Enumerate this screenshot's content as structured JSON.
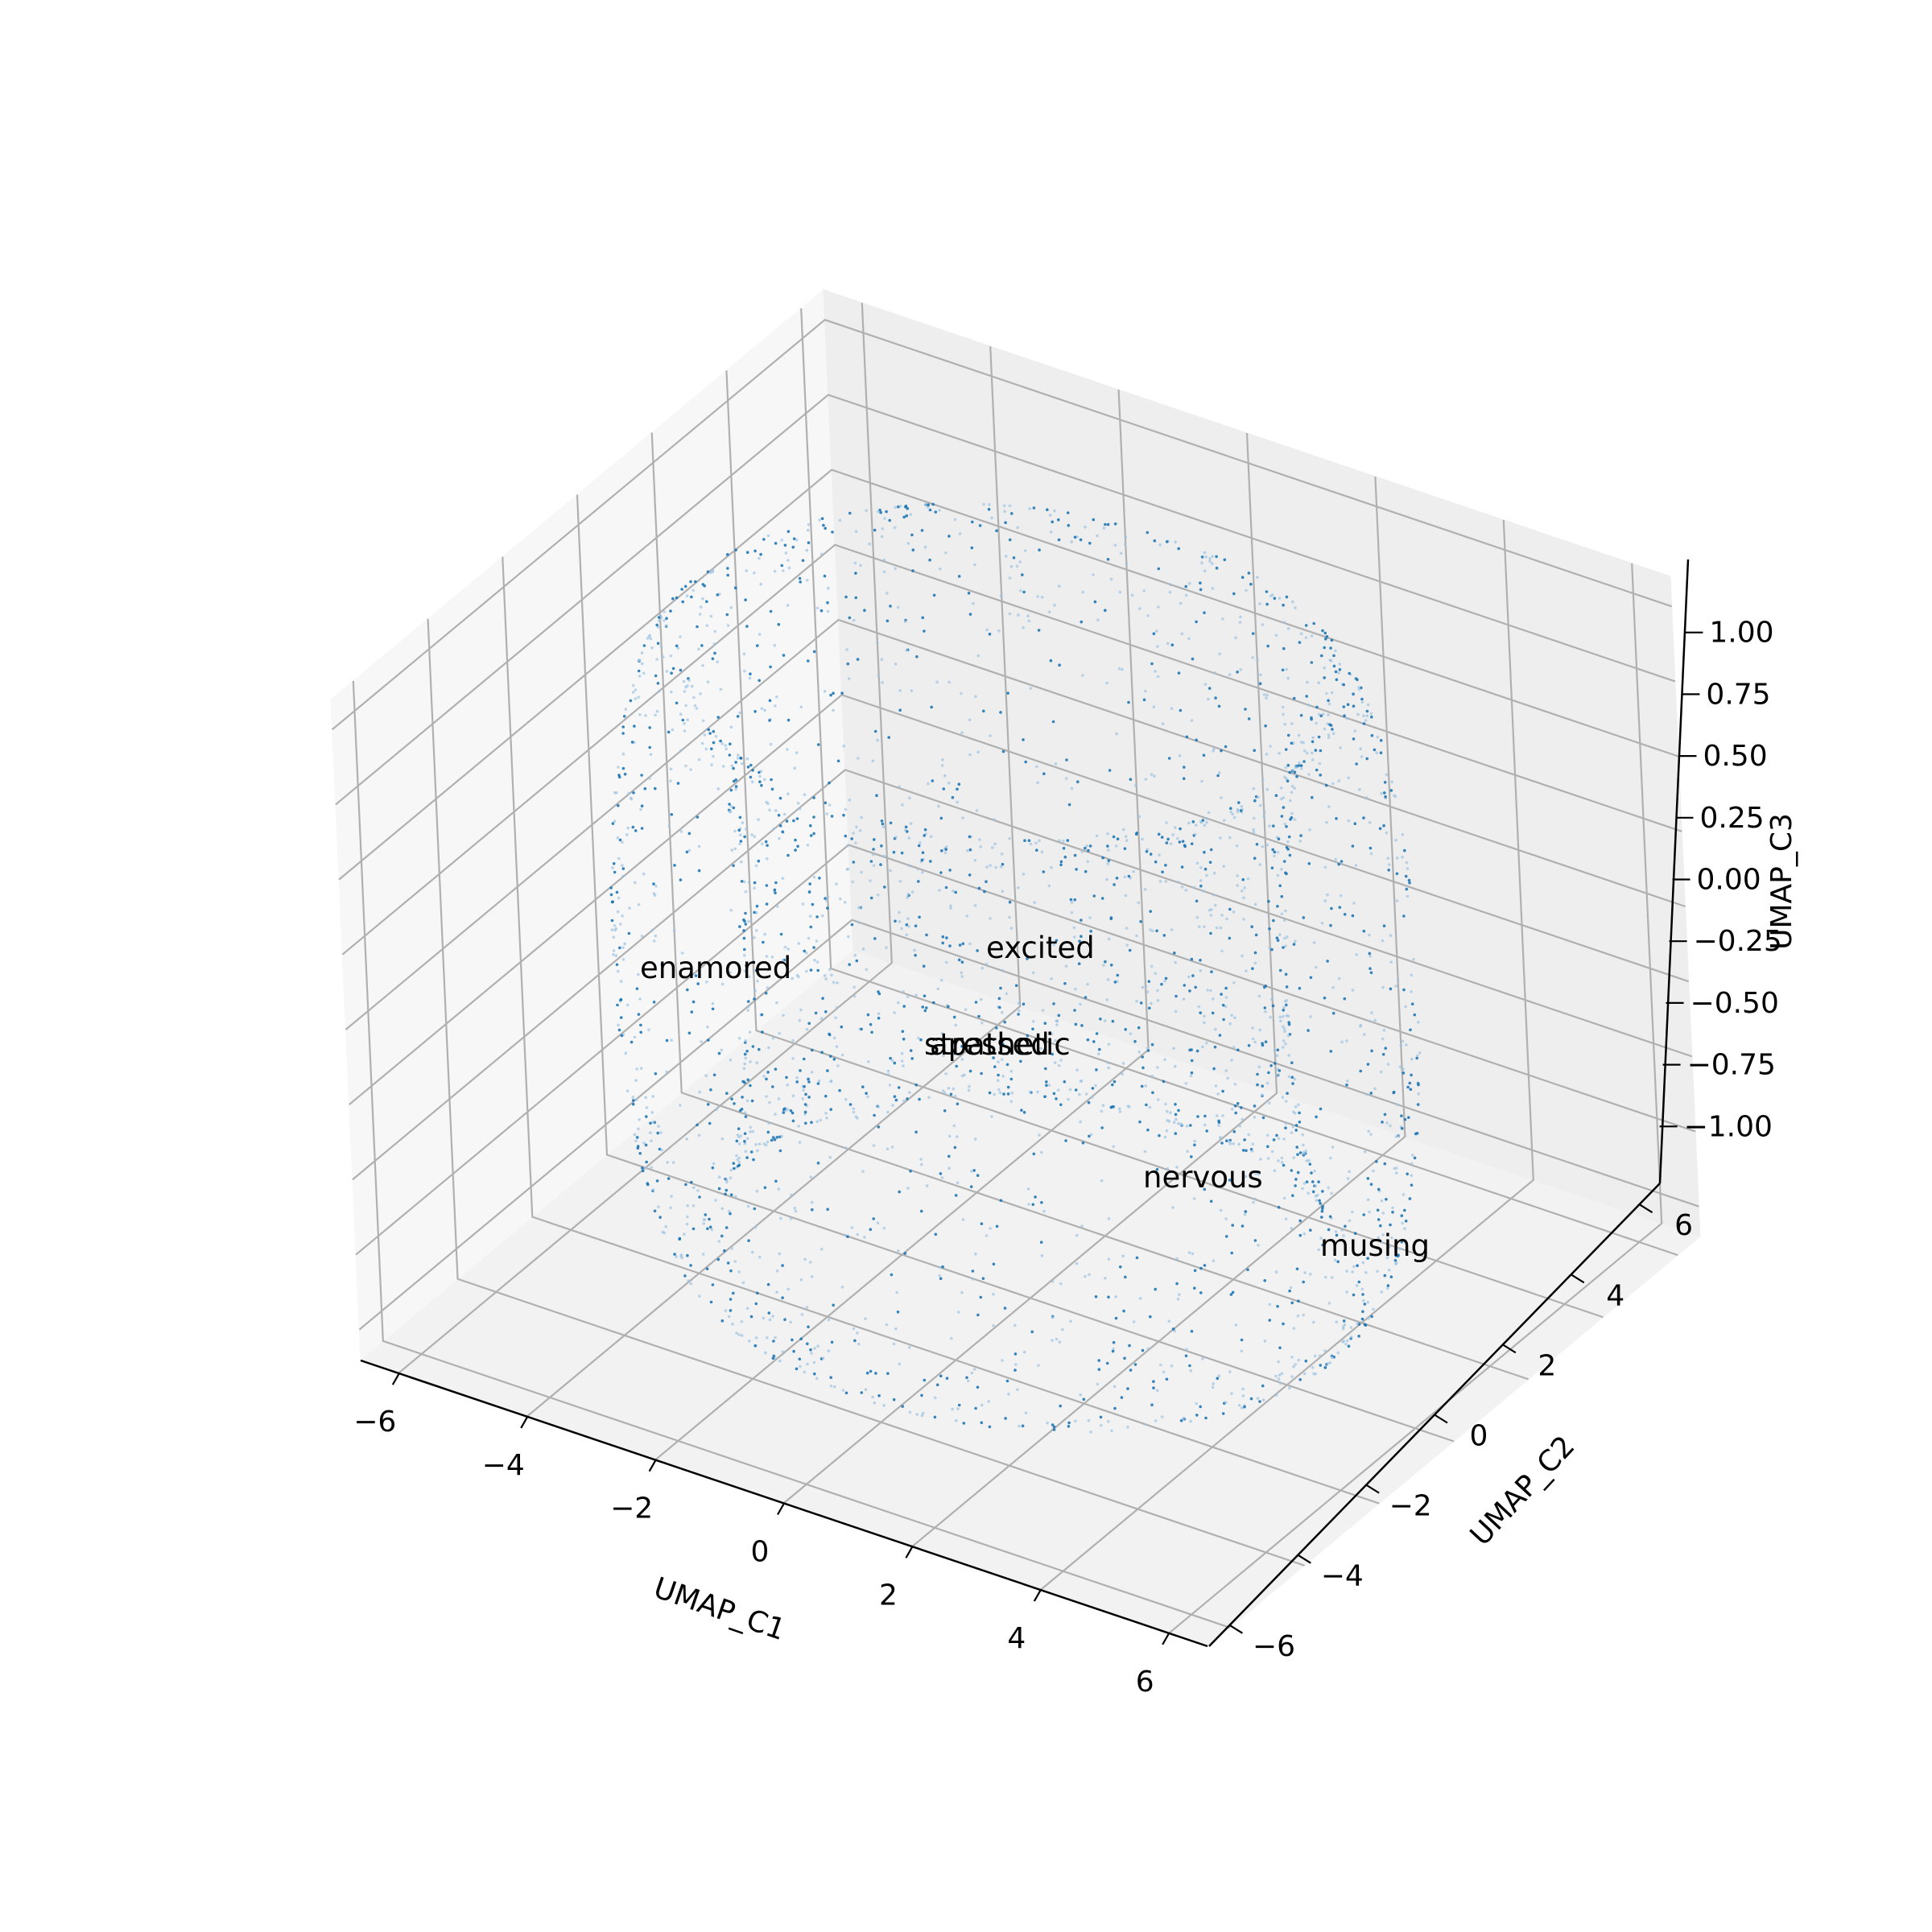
{
  "chart_data": {
    "type": "scatter",
    "projection": "3d",
    "title": "",
    "xlabel": "UMAP_C1",
    "ylabel": "UMAP_C2",
    "zlabel": "UMAP_C3",
    "xlim": [
      -6.6,
      6.6
    ],
    "ylim": [
      -6.6,
      6.6
    ],
    "zlim": [
      -1.1,
      1.1
    ],
    "x_ticks": [
      -6,
      -4,
      -2,
      0,
      2,
      4,
      6
    ],
    "y_ticks": [
      -6,
      -4,
      -2,
      0,
      2,
      4,
      6
    ],
    "z_ticks": [
      -1.0,
      -0.75,
      -0.5,
      -0.25,
      0.0,
      0.25,
      0.5,
      0.75,
      1.0
    ],
    "x_tick_labels": [
      "−6",
      "−4",
      "−2",
      "0",
      "2",
      "4",
      "6"
    ],
    "y_tick_labels": [
      "−6",
      "−4",
      "−2",
      "0",
      "2",
      "4",
      "6"
    ],
    "z_tick_labels": [
      "−1.00",
      "−0.75",
      "−0.50",
      "−0.25",
      "0.00",
      "0.25",
      "0.50",
      "0.75",
      "1.00"
    ],
    "grid": true,
    "series_color": "#1f77b4",
    "marker_size": "tiny",
    "point_count_estimate": 3000,
    "distribution": "points lie on the surface of a torus-like ring of radius ~5 in the C1–C2 plane spanning C3 from -1 to 1",
    "annotations": [
      {
        "text": "enamored",
        "x": -3.7,
        "y": 4.4,
        "z": -0.15
      },
      {
        "text": "excited",
        "x": -3.4,
        "y": 6.3,
        "z": -0.85
      },
      {
        "text": "stressed",
        "x": -2.5,
        "y": 3.6,
        "z": -0.55
      },
      {
        "text": "apathetic",
        "x": -2.3,
        "y": 3.8,
        "z": -0.55
      },
      {
        "text": "nervous",
        "x": 0.8,
        "y": 4.2,
        "z": -0.7
      },
      {
        "text": "musing",
        "x": 2.5,
        "y": 4.3,
        "z": -0.5
      }
    ]
  }
}
